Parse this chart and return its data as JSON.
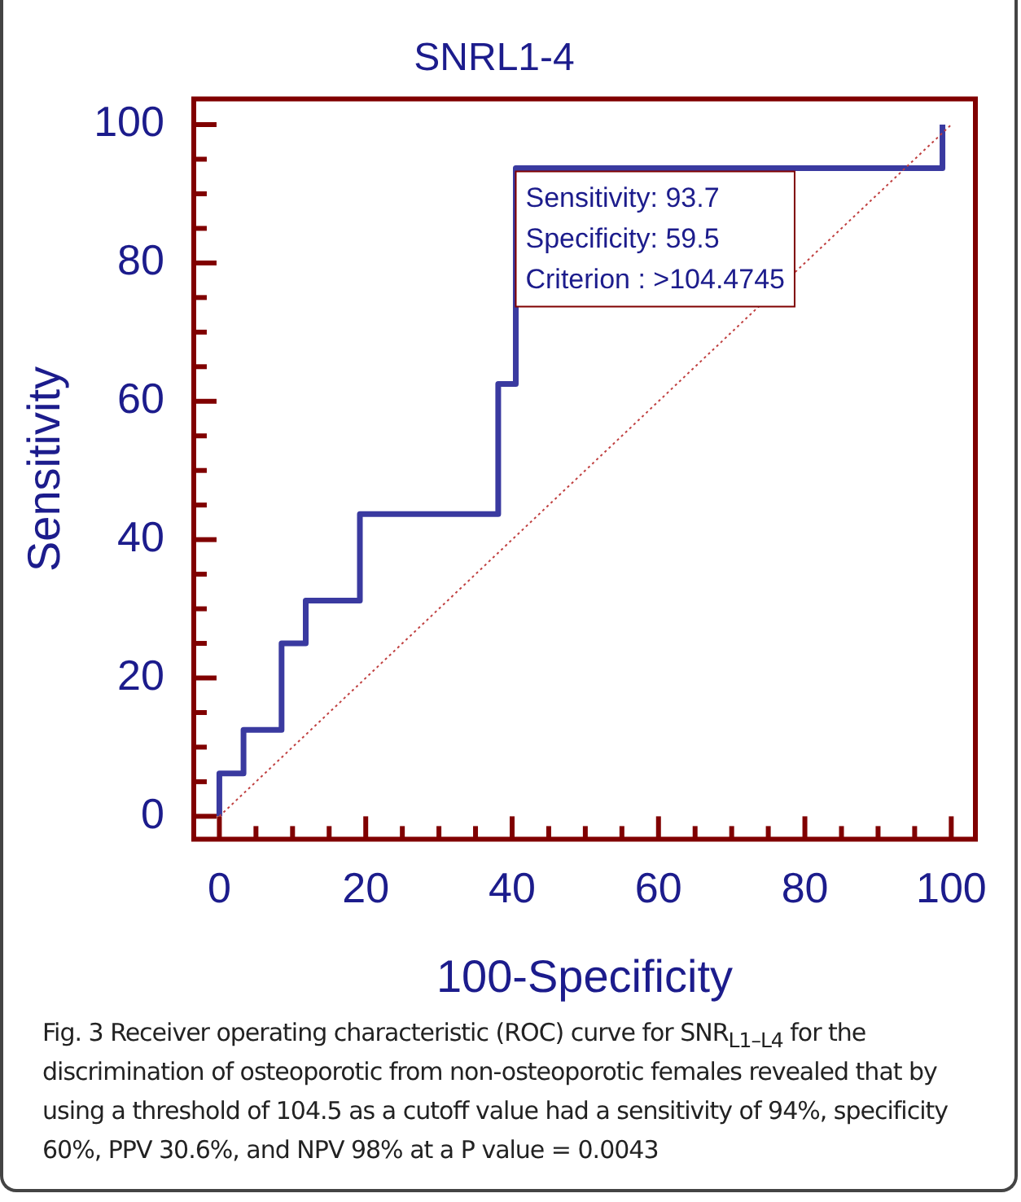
{
  "chart_data": {
    "type": "line",
    "title": "SNRL1-4",
    "xlabel": "100-Specificity",
    "ylabel": "Sensitivity",
    "xlim": [
      -3.5,
      103.3
    ],
    "ylim": [
      -3.3,
      103.7
    ],
    "xticks": [
      0,
      {
        "value": 5,
        "label": null
      },
      {
        "value": 10,
        "label": null
      },
      {
        "value": 15,
        "label": null
      },
      20,
      {
        "value": 25,
        "label": null
      },
      {
        "value": 30,
        "label": null
      },
      {
        "value": 35,
        "label": null
      },
      40,
      {
        "value": 45,
        "label": null
      },
      {
        "value": 50,
        "label": null
      },
      {
        "value": 55,
        "label": null
      },
      60,
      {
        "value": 65,
        "label": null
      },
      {
        "value": 70,
        "label": null
      },
      {
        "value": 75,
        "label": null
      },
      80,
      {
        "value": 85,
        "label": null
      },
      {
        "value": 90,
        "label": null
      },
      {
        "value": 95,
        "label": null
      },
      100
    ],
    "yticks": [
      0,
      {
        "value": 5,
        "label": null
      },
      {
        "value": 10,
        "label": null
      },
      {
        "value": 15,
        "label": null
      },
      20,
      {
        "value": 25,
        "label": null
      },
      {
        "value": 30,
        "label": null
      },
      {
        "value": 35,
        "label": null
      },
      40,
      {
        "value": 45,
        "label": null
      },
      {
        "value": 50,
        "label": null
      },
      {
        "value": 55,
        "label": null
      },
      60,
      {
        "value": 65,
        "label": null
      },
      {
        "value": 70,
        "label": null
      },
      {
        "value": 75,
        "label": null
      },
      80,
      {
        "value": 85,
        "label": null
      },
      {
        "value": 90,
        "label": null
      },
      {
        "value": 95,
        "label": null
      },
      100
    ],
    "grid": false,
    "legend": false,
    "marker": "none",
    "series": [
      {
        "type": "line",
        "color": "#c04040",
        "line_style": "dotted",
        "x": [
          0,
          100
        ],
        "values": [
          0,
          100
        ]
      },
      {
        "type": "line",
        "color": "#3a3aa0",
        "line_style": "solid",
        "x": [
          0,
          0,
          3.3,
          3.3,
          8.5,
          8.5,
          11.8,
          11.8,
          19.2,
          19.2,
          38.1,
          38.1,
          40.5,
          40.5,
          98.8,
          98.8
        ],
        "values": [
          0,
          6.2,
          6.2,
          12.5,
          12.5,
          25,
          25,
          31.2,
          31.2,
          43.7,
          43.7,
          62.5,
          62.5,
          93.7,
          93.7,
          100
        ]
      }
    ],
    "annotations": [
      {
        "text": "Sensitivity: 93.7\nSpecificity: 59.5\nCriterion : >104.4745",
        "x": 40.5,
        "y": 93.7
      },
      "Fig. 3 Receiver operating characteristic (ROC) curve for SNR$_{L1–L4}$ for the discrimination of osteoporotic from non-osteoporotic females revealed that by using a threshold of 104.5 as a cutoff value had a sensitivity of 94%, specificity 60%, PPV 30.6%, and NPV 98% at a P value = 0.0043"
    ]
  }
}
